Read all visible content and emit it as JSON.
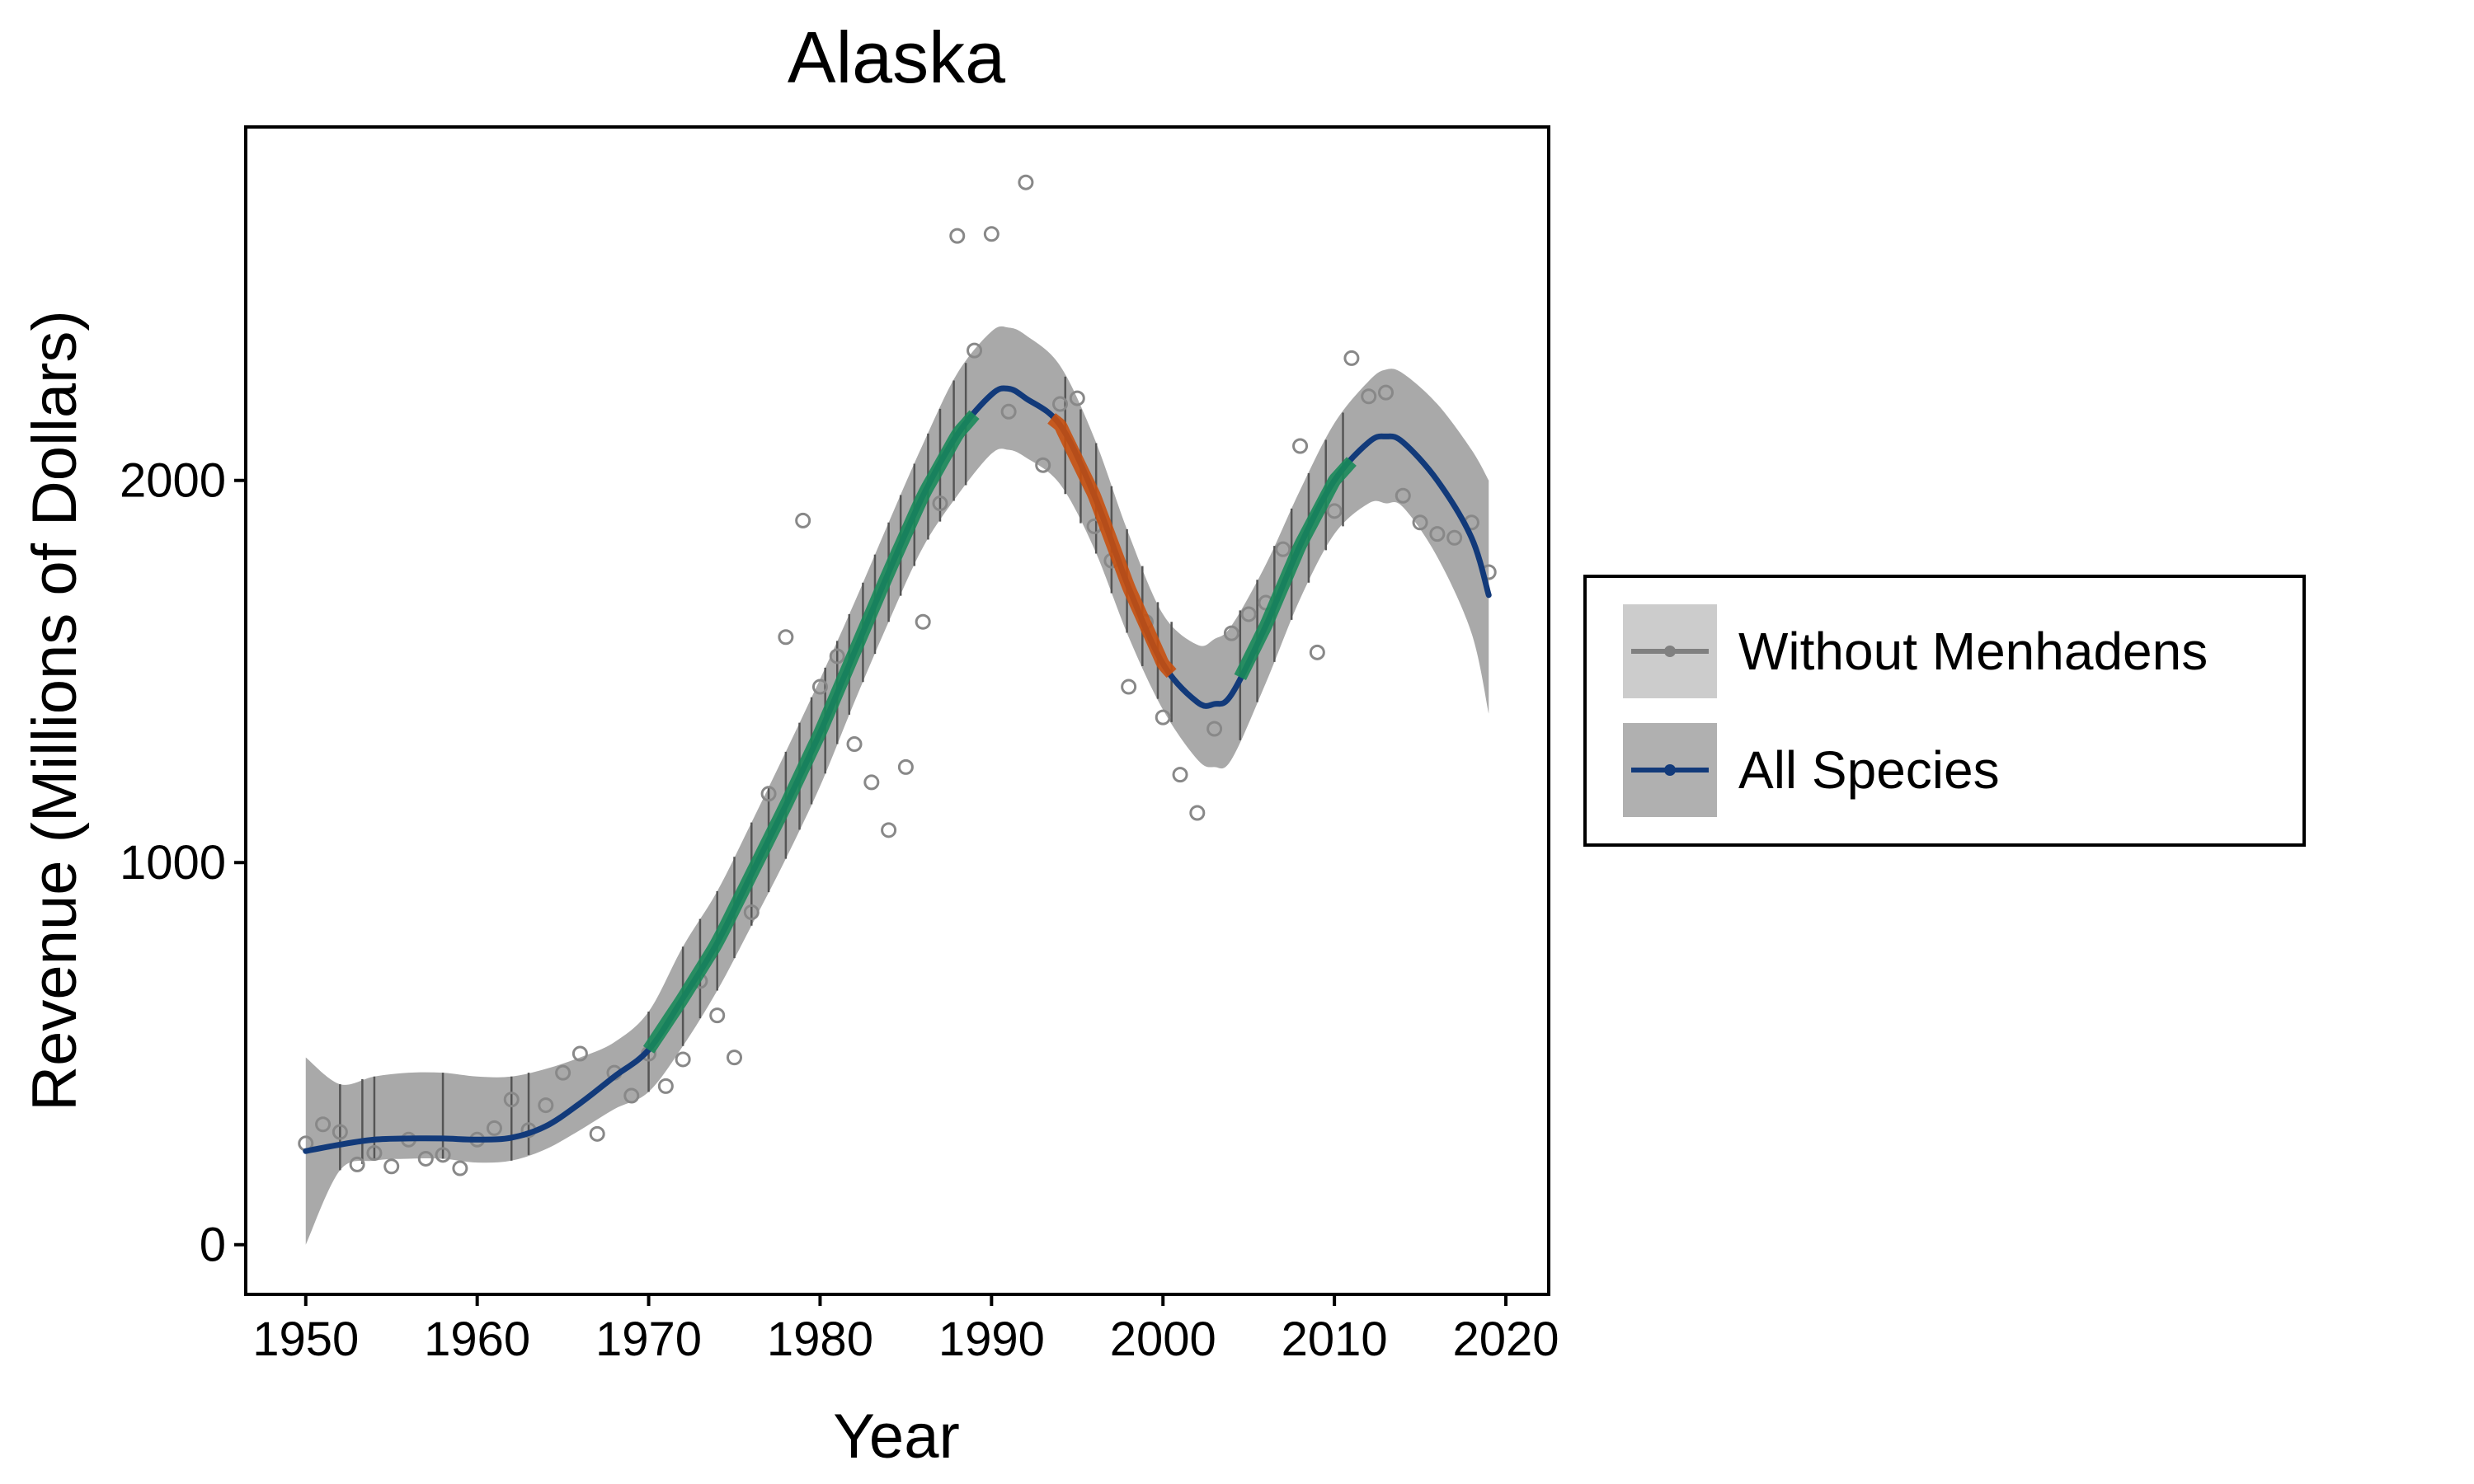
{
  "chart_data": {
    "type": "line",
    "title": "Alaska",
    "xlabel": "Year",
    "ylabel": "Revenue (Millions of Dollars)",
    "xlim": [
      1946.5,
      2022.5
    ],
    "ylim": [
      -130,
      2925
    ],
    "x_ticks": [
      1950,
      1960,
      1970,
      1980,
      1990,
      2000,
      2010,
      2020
    ],
    "x_tick_labels": [
      "1950",
      "1960",
      "1970",
      "1980",
      "1990",
      "2000",
      "2010",
      "2020"
    ],
    "y_ticks": [
      0,
      1000,
      2000
    ],
    "y_tick_labels": [
      "0",
      "1000",
      "2000"
    ],
    "grid": false,
    "legend": {
      "placement": "right",
      "entries": [
        {
          "label": "Without Menhadens",
          "color": "#808080",
          "fill": "#cccccc"
        },
        {
          "label": "All Species",
          "color": "#123a7a",
          "fill": "#b0b0b0"
        }
      ]
    },
    "colors": {
      "all_species_line": "#123a7a",
      "without_menhadens_line": "#808080",
      "increasing": "#1a8a5a",
      "decreasing": "#c8500f",
      "band": "#a9a9a9",
      "points": "#888888"
    },
    "series": [
      {
        "name": "All Species",
        "kind": "points",
        "x": [
          1950,
          1951,
          1952,
          1953,
          1954,
          1955,
          1956,
          1957,
          1958,
          1959,
          1960,
          1961,
          1962,
          1963,
          1964,
          1965,
          1966,
          1967,
          1968,
          1969,
          1970,
          1971,
          1972,
          1973,
          1974,
          1975,
          1976,
          1977,
          1978,
          1979,
          1980,
          1981,
          1982,
          1983,
          1984,
          1985,
          1986,
          1987,
          1988,
          1989,
          1990,
          1991,
          1992,
          1993,
          1994,
          1995,
          1996,
          1997,
          1998,
          1999,
          2000,
          2001,
          2002,
          2003,
          2004,
          2005,
          2006,
          2007,
          2008,
          2009,
          2010,
          2011,
          2012,
          2013,
          2014,
          2015,
          2016,
          2017,
          2018,
          2019
        ],
        "y": [
          265,
          315,
          295,
          210,
          240,
          205,
          275,
          225,
          235,
          200,
          275,
          305,
          380,
          300,
          365,
          450,
          500,
          290,
          450,
          390,
          500,
          415,
          485,
          690,
          600,
          490,
          870,
          1180,
          1590,
          1895,
          1460,
          1540,
          1310,
          1210,
          1085,
          1250,
          1630,
          1940,
          2640,
          2340,
          2645,
          2180,
          2780,
          2040,
          2200,
          2215,
          1880,
          1790,
          1460,
          1630,
          1380,
          1230,
          1130,
          1350,
          1600,
          1650,
          1680,
          1820,
          2090,
          1550,
          1920,
          2320,
          2220,
          2230,
          1960,
          1890,
          1860,
          1850,
          1890,
          1760
        ]
      },
      {
        "name": "All Species",
        "kind": "smooth",
        "x": [
          1950,
          1952,
          1954,
          1956,
          1958,
          1960,
          1962,
          1964,
          1966,
          1968,
          1970,
          1972,
          1974,
          1976,
          1978,
          1980,
          1982,
          1984,
          1986,
          1988,
          1990,
          1991,
          1992,
          1994,
          1996,
          1998,
          2000,
          2002,
          2003,
          2004,
          2006,
          2008,
          2010,
          2012,
          2013,
          2014,
          2016,
          2018,
          2019
        ],
        "y": [
          245,
          262,
          275,
          278,
          278,
          275,
          280,
          310,
          370,
          440,
          510,
          645,
          790,
          970,
          1150,
          1340,
          1550,
          1760,
          1960,
          2120,
          2225,
          2240,
          2215,
          2145,
          1960,
          1720,
          1520,
          1420,
          1415,
          1440,
          1620,
          1830,
          2000,
          2100,
          2115,
          2100,
          2000,
          1850,
          1700
        ],
        "lower": [
          0,
          195,
          220,
          225,
          225,
          215,
          220,
          250,
          300,
          355,
          400,
          520,
          665,
          835,
          1010,
          1200,
          1420,
          1630,
          1825,
          1960,
          2070,
          2080,
          2060,
          1990,
          1820,
          1590,
          1400,
          1270,
          1250,
          1270,
          1470,
          1690,
          1860,
          1940,
          1940,
          1930,
          1800,
          1600,
          1390
        ],
        "upper": [
          490,
          420,
          440,
          450,
          450,
          440,
          440,
          460,
          490,
          530,
          610,
          780,
          925,
          1105,
          1290,
          1480,
          1680,
          1890,
          2095,
          2280,
          2390,
          2400,
          2380,
          2300,
          2110,
          1860,
          1650,
          1570,
          1585,
          1620,
          1780,
          1975,
          2150,
          2260,
          2290,
          2280,
          2200,
          2080,
          2000
        ]
      }
    ],
    "segments": [
      {
        "trend": "increasing",
        "x_start": 1970,
        "x_end": 1989
      },
      {
        "trend": "decreasing",
        "x_start": 1993.5,
        "x_end": 2000.5
      },
      {
        "trend": "increasing",
        "x_start": 2004.5,
        "x_end": 2011
      }
    ],
    "rug_x": [
      1952,
      1953.3,
      1954,
      1958,
      1962,
      1963,
      1970,
      1972,
      1973,
      1974,
      1975,
      1976,
      1977,
      1978,
      1978.8,
      1979.5,
      1980.3,
      1981,
      1981.7,
      1982.5,
      1983.2,
      1984,
      1984.7,
      1985.5,
      1986.3,
      1987,
      1987.8,
      1988.5,
      1994.3,
      1995.2,
      1996.1,
      1997,
      1997.9,
      1998.8,
      1999.7,
      2000.5,
      2004.5,
      2005.5,
      2006.5,
      2007.5,
      2008.5,
      2009.5,
      2010.5
    ]
  }
}
